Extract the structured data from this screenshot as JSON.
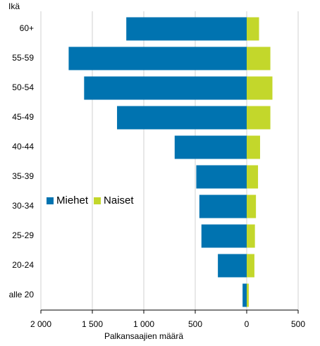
{
  "chart_data": {
    "type": "bar",
    "orientation": "horizontal",
    "ylabel": "Ikä",
    "xlabel": "Palkansaajien määrä",
    "categories": [
      "60+",
      "55-59",
      "50-54",
      "45-49",
      "40-44",
      "35-39",
      "30-34",
      "25-29",
      "20-24",
      "alle 20"
    ],
    "series": [
      {
        "name": "Miehet",
        "color": "#0073b0",
        "values": [
          -1170,
          -1730,
          -1580,
          -1260,
          -700,
          -490,
          -460,
          -440,
          -280,
          -40
        ]
      },
      {
        "name": "Naiset",
        "color": "#c3d72b",
        "values": [
          120,
          230,
          250,
          230,
          130,
          110,
          90,
          80,
          75,
          20
        ]
      }
    ],
    "xlim": [
      -2000,
      500
    ],
    "xticks": [
      {
        "value": -2000,
        "label": "2 000"
      },
      {
        "value": -1500,
        "label": "1 500"
      },
      {
        "value": -1000,
        "label": "1 000"
      },
      {
        "value": -500,
        "label": "500"
      },
      0,
      500
    ],
    "grid": true,
    "legend": "left"
  }
}
